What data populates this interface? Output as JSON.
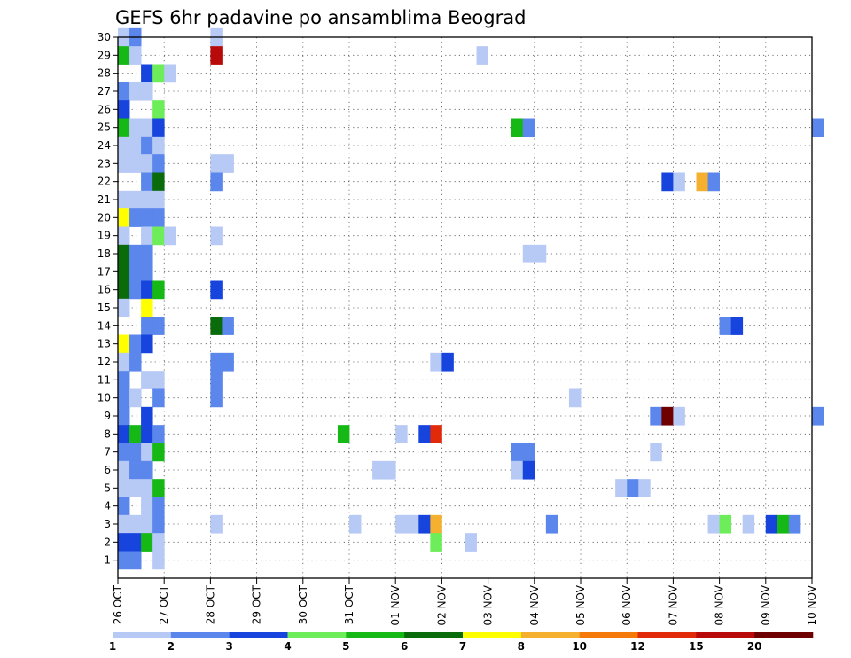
{
  "chart_data": {
    "type": "heatmap",
    "title": "GEFS 6hr padavine po ansamblima Beograd",
    "xlabel": "",
    "ylabel": "",
    "x_tick_labels": [
      "26 OCT",
      "27 OCT",
      "28 OCT",
      "29 OCT",
      "30 OCT",
      "31 OCT",
      "01 NOV",
      "02 NOV",
      "03 NOV",
      "04 NOV",
      "05 NOV",
      "06 NOV",
      "07 NOV",
      "08 NOV",
      "09 NOV",
      "10 NOV"
    ],
    "y_tick_labels": [
      "1",
      "2",
      "3",
      "4",
      "5",
      "6",
      "7",
      "8",
      "9",
      "10",
      "11",
      "12",
      "13",
      "14",
      "15",
      "16",
      "17",
      "18",
      "19",
      "20",
      "21",
      "22",
      "23",
      "24",
      "25",
      "26",
      "27",
      "28",
      "29",
      "30"
    ],
    "x_range_steps": [
      0,
      60
    ],
    "steps_per_day": 4,
    "y_range": [
      0,
      30
    ],
    "grid": true,
    "legend": {
      "position": "bottom",
      "labels": [
        "1",
        "2",
        "3",
        "4",
        "5",
        "6",
        "7",
        "8",
        "10",
        "12",
        "15",
        "20"
      ],
      "colors": [
        "#b7c9f5",
        "#5b86ec",
        "#1644dc",
        "#6ded5a",
        "#16b816",
        "#0a6b0a",
        "#ffff00",
        "#f5b030",
        "#f57a0a",
        "#e02a0a",
        "#b80a0a",
        "#6e0000"
      ]
    },
    "cells": [
      [
        0,
        30,
        1
      ],
      [
        1,
        30,
        2
      ],
      [
        8,
        30,
        1
      ],
      [
        0,
        29,
        5
      ],
      [
        1,
        29,
        1
      ],
      [
        8,
        29,
        15
      ],
      [
        31,
        29,
        1
      ],
      [
        2,
        28,
        3
      ],
      [
        3,
        28,
        4
      ],
      [
        4,
        28,
        1
      ],
      [
        0,
        27,
        2
      ],
      [
        1,
        27,
        1
      ],
      [
        2,
        27,
        1
      ],
      [
        0,
        26,
        3
      ],
      [
        3,
        26,
        4
      ],
      [
        0,
        25,
        5
      ],
      [
        1,
        25,
        1
      ],
      [
        2,
        25,
        1
      ],
      [
        3,
        25,
        3
      ],
      [
        34,
        25,
        5
      ],
      [
        35,
        25,
        2
      ],
      [
        60,
        25,
        2
      ],
      [
        0,
        24,
        1
      ],
      [
        1,
        24,
        1
      ],
      [
        2,
        24,
        2
      ],
      [
        3,
        24,
        1
      ],
      [
        0,
        23,
        1
      ],
      [
        1,
        23,
        1
      ],
      [
        2,
        23,
        1
      ],
      [
        3,
        23,
        2
      ],
      [
        8,
        23,
        1
      ],
      [
        9,
        23,
        1
      ],
      [
        2,
        22,
        2
      ],
      [
        3,
        22,
        6
      ],
      [
        8,
        22,
        2
      ],
      [
        47,
        22,
        3
      ],
      [
        48,
        22,
        1
      ],
      [
        50,
        22,
        8
      ],
      [
        51,
        22,
        2
      ],
      [
        0,
        21,
        1
      ],
      [
        1,
        21,
        1
      ],
      [
        2,
        21,
        1
      ],
      [
        3,
        21,
        1
      ],
      [
        0,
        20,
        7
      ],
      [
        1,
        20,
        2
      ],
      [
        2,
        20,
        2
      ],
      [
        3,
        20,
        2
      ],
      [
        0,
        19,
        1
      ],
      [
        2,
        19,
        1
      ],
      [
        3,
        19,
        4
      ],
      [
        4,
        19,
        1
      ],
      [
        8,
        19,
        1
      ],
      [
        0,
        18,
        6
      ],
      [
        1,
        18,
        2
      ],
      [
        2,
        18,
        2
      ],
      [
        35,
        18,
        1
      ],
      [
        36,
        18,
        1
      ],
      [
        0,
        17,
        6
      ],
      [
        1,
        17,
        2
      ],
      [
        2,
        17,
        2
      ],
      [
        0,
        16,
        6
      ],
      [
        1,
        16,
        2
      ],
      [
        2,
        16,
        3
      ],
      [
        3,
        16,
        5
      ],
      [
        8,
        16,
        3
      ],
      [
        0,
        15,
        1
      ],
      [
        2,
        15,
        7
      ],
      [
        2,
        14,
        2
      ],
      [
        3,
        14,
        2
      ],
      [
        8,
        14,
        6
      ],
      [
        9,
        14,
        2
      ],
      [
        52,
        14,
        2
      ],
      [
        53,
        14,
        3
      ],
      [
        0,
        13,
        7
      ],
      [
        1,
        13,
        2
      ],
      [
        2,
        13,
        3
      ],
      [
        0,
        12,
        1
      ],
      [
        1,
        12,
        2
      ],
      [
        8,
        12,
        2
      ],
      [
        9,
        12,
        2
      ],
      [
        27,
        12,
        1
      ],
      [
        28,
        12,
        3
      ],
      [
        0,
        11,
        2
      ],
      [
        2,
        11,
        1
      ],
      [
        3,
        11,
        1
      ],
      [
        8,
        11,
        2
      ],
      [
        0,
        10,
        2
      ],
      [
        1,
        10,
        1
      ],
      [
        3,
        10,
        2
      ],
      [
        8,
        10,
        2
      ],
      [
        39,
        10,
        1
      ],
      [
        0,
        9,
        2
      ],
      [
        2,
        9,
        3
      ],
      [
        46,
        9,
        2
      ],
      [
        47,
        9,
        20
      ],
      [
        48,
        9,
        1
      ],
      [
        60,
        9,
        2
      ],
      [
        0,
        8,
        3
      ],
      [
        1,
        8,
        5
      ],
      [
        2,
        8,
        3
      ],
      [
        3,
        8,
        2
      ],
      [
        19,
        8,
        5
      ],
      [
        24,
        8,
        1
      ],
      [
        26,
        8,
        3
      ],
      [
        27,
        8,
        12
      ],
      [
        0,
        7,
        2
      ],
      [
        1,
        7,
        2
      ],
      [
        2,
        7,
        1
      ],
      [
        3,
        7,
        5
      ],
      [
        34,
        7,
        2
      ],
      [
        35,
        7,
        2
      ],
      [
        46,
        7,
        1
      ],
      [
        0,
        6,
        1
      ],
      [
        1,
        6,
        2
      ],
      [
        2,
        6,
        2
      ],
      [
        22,
        6,
        1
      ],
      [
        23,
        6,
        1
      ],
      [
        34,
        6,
        1
      ],
      [
        35,
        6,
        3
      ],
      [
        0,
        5,
        1
      ],
      [
        1,
        5,
        1
      ],
      [
        2,
        5,
        1
      ],
      [
        3,
        5,
        5
      ],
      [
        43,
        5,
        1
      ],
      [
        44,
        5,
        2
      ],
      [
        45,
        5,
        1
      ],
      [
        0,
        4,
        2
      ],
      [
        2,
        4,
        1
      ],
      [
        3,
        4,
        2
      ],
      [
        0,
        3,
        1
      ],
      [
        1,
        3,
        1
      ],
      [
        2,
        3,
        1
      ],
      [
        3,
        3,
        2
      ],
      [
        8,
        3,
        1
      ],
      [
        20,
        3,
        1
      ],
      [
        24,
        3,
        1
      ],
      [
        25,
        3,
        1
      ],
      [
        26,
        3,
        3
      ],
      [
        27,
        3,
        8
      ],
      [
        37,
        3,
        2
      ],
      [
        51,
        3,
        1
      ],
      [
        52,
        3,
        4
      ],
      [
        54,
        3,
        1
      ],
      [
        56,
        3,
        3
      ],
      [
        57,
        3,
        5
      ],
      [
        58,
        3,
        2
      ],
      [
        0,
        2,
        3
      ],
      [
        1,
        2,
        3
      ],
      [
        2,
        2,
        5
      ],
      [
        3,
        2,
        1
      ],
      [
        27,
        2,
        4
      ],
      [
        30,
        2,
        1
      ],
      [
        0,
        1,
        2
      ],
      [
        1,
        1,
        2
      ],
      [
        3,
        1,
        1
      ]
    ]
  }
}
